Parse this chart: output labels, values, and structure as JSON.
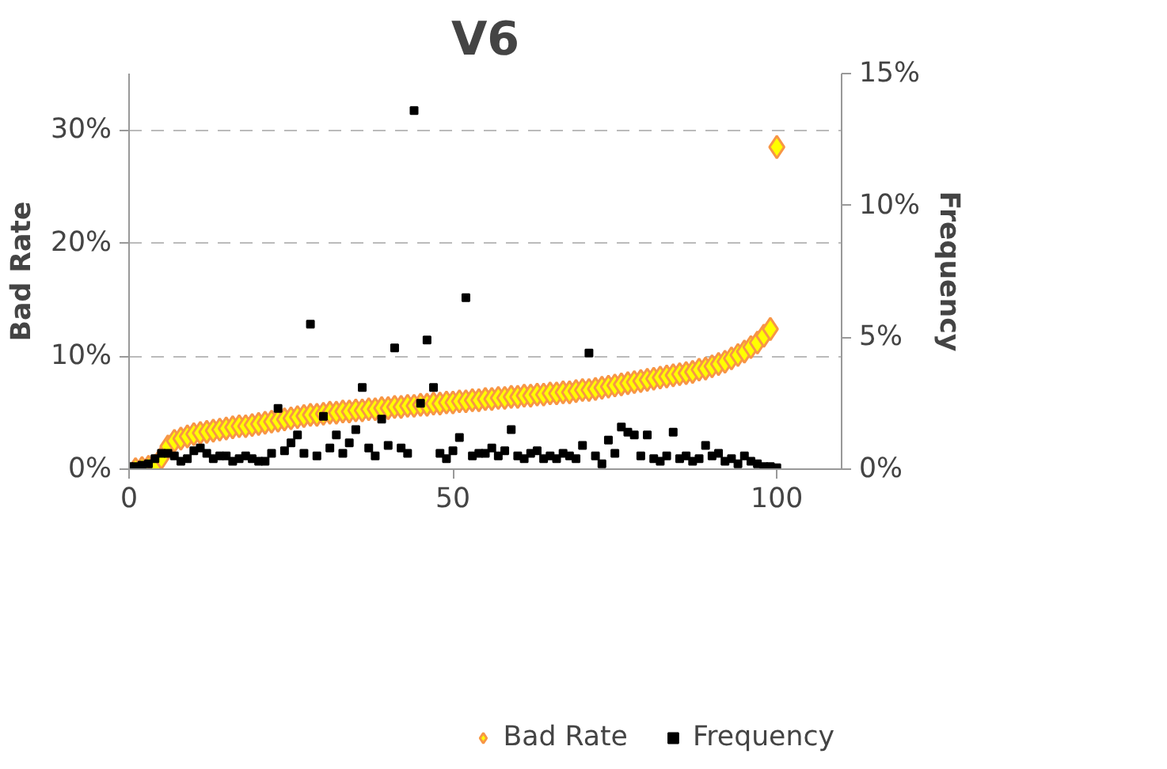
{
  "chart_data": {
    "type": "scatter",
    "title": "V6",
    "ylabel": "Bad Rate",
    "y2label": "Frequency",
    "x": [
      0,
      1,
      2,
      3,
      4,
      5,
      6,
      7,
      8,
      9,
      10,
      11,
      12,
      13,
      14,
      15,
      16,
      17,
      18,
      19,
      20,
      21,
      22,
      23,
      24,
      25,
      26,
      27,
      28,
      29,
      30,
      31,
      32,
      33,
      34,
      35,
      36,
      37,
      38,
      39,
      40,
      41,
      42,
      43,
      44,
      45,
      46,
      47,
      48,
      49,
      50,
      51,
      52,
      53,
      54,
      55,
      56,
      57,
      58,
      59,
      60,
      61,
      62,
      63,
      64,
      65,
      66,
      67,
      68,
      69,
      70,
      71,
      72,
      73,
      74,
      75,
      76,
      77,
      78,
      79,
      80,
      81,
      82,
      83,
      84,
      85,
      86,
      87,
      88,
      89,
      90,
      91,
      92,
      93,
      94,
      95,
      96,
      97,
      98,
      99,
      100
    ],
    "series": [
      {
        "name": "Bad Rate",
        "color": "#ffff00",
        "marker": "diamond",
        "values": [
          null,
          0,
          0.1,
          0.2,
          0.3,
          1.0,
          2.0,
          2.5,
          2.7,
          2.9,
          3.1,
          3.2,
          3.3,
          3.4,
          3.5,
          3.6,
          3.7,
          3.8,
          3.8,
          3.9,
          4.0,
          4.1,
          4.2,
          4.3,
          4.4,
          4.5,
          4.6,
          4.7,
          4.8,
          4.8,
          4.9,
          5.0,
          5.0,
          5.1,
          5.1,
          5.2,
          5.2,
          5.3,
          5.3,
          5.4,
          5.4,
          5.5,
          5.5,
          5.6,
          5.6,
          5.7,
          5.7,
          5.8,
          5.8,
          5.9,
          5.9,
          6.0,
          6.0,
          6.1,
          6.1,
          6.2,
          6.2,
          6.3,
          6.3,
          6.4,
          6.4,
          6.5,
          6.5,
          6.6,
          6.6,
          6.7,
          6.7,
          6.8,
          6.8,
          6.9,
          7.0,
          7.0,
          7.1,
          7.2,
          7.3,
          7.4,
          7.5,
          7.6,
          7.7,
          7.8,
          7.9,
          8.0,
          8.1,
          8.2,
          8.3,
          8.4,
          8.5,
          8.6,
          8.8,
          8.9,
          9.1,
          9.3,
          9.5,
          9.8,
          10.1,
          10.4,
          10.8,
          11.2,
          11.8,
          12.4,
          28.5
        ]
      },
      {
        "name": "Frequency",
        "color": "#000000",
        "marker": "square",
        "axis": "y2",
        "values": [
          0.1,
          0.1,
          0.15,
          0.2,
          0.4,
          0.6,
          0.6,
          0.5,
          0.3,
          0.4,
          0.7,
          0.8,
          0.6,
          0.4,
          0.5,
          0.5,
          0.3,
          0.4,
          0.5,
          0.4,
          0.3,
          0.3,
          0.6,
          2.3,
          0.7,
          1.0,
          1.3,
          0.6,
          5.5,
          0.5,
          2.0,
          0.8,
          1.3,
          0.6,
          1.0,
          1.5,
          3.1,
          0.8,
          0.5,
          1.9,
          0.9,
          4.6,
          0.8,
          0.6,
          13.6,
          2.5,
          4.9,
          3.1,
          0.6,
          0.4,
          0.7,
          1.2,
          6.5,
          0.5,
          0.6,
          0.6,
          0.8,
          0.5,
          0.7,
          1.5,
          0.5,
          0.4,
          0.6,
          0.7,
          0.4,
          0.5,
          0.4,
          0.6,
          0.5,
          0.4,
          0.9,
          4.4,
          0.5,
          0.2,
          1.1,
          0.6,
          1.6,
          1.4,
          1.3,
          0.5,
          1.3,
          0.4,
          0.3,
          0.5,
          1.4,
          0.4,
          0.5,
          0.3,
          0.4,
          0.9,
          0.5,
          0.6,
          0.3,
          0.4,
          0.2,
          0.5,
          0.3,
          0.2,
          0.1,
          0.1,
          0.05
        ]
      }
    ],
    "xlim": [
      0,
      110
    ],
    "xticks": [
      0,
      50,
      100
    ],
    "ylim": [
      0,
      35
    ],
    "yticks": [
      {
        "value": 0,
        "label": "0%"
      },
      {
        "value": 10,
        "label": "10%"
      },
      {
        "value": 20,
        "label": "20%"
      },
      {
        "value": 30,
        "label": "30%"
      }
    ],
    "y2lim": [
      0,
      15
    ],
    "y2ticks": [
      {
        "value": 0,
        "label": "0%"
      },
      {
        "value": 5,
        "label": "5%"
      },
      {
        "value": 10,
        "label": "10%"
      },
      {
        "value": 15,
        "label": "15%"
      }
    ],
    "grid": "y",
    "legend": "bottom"
  }
}
